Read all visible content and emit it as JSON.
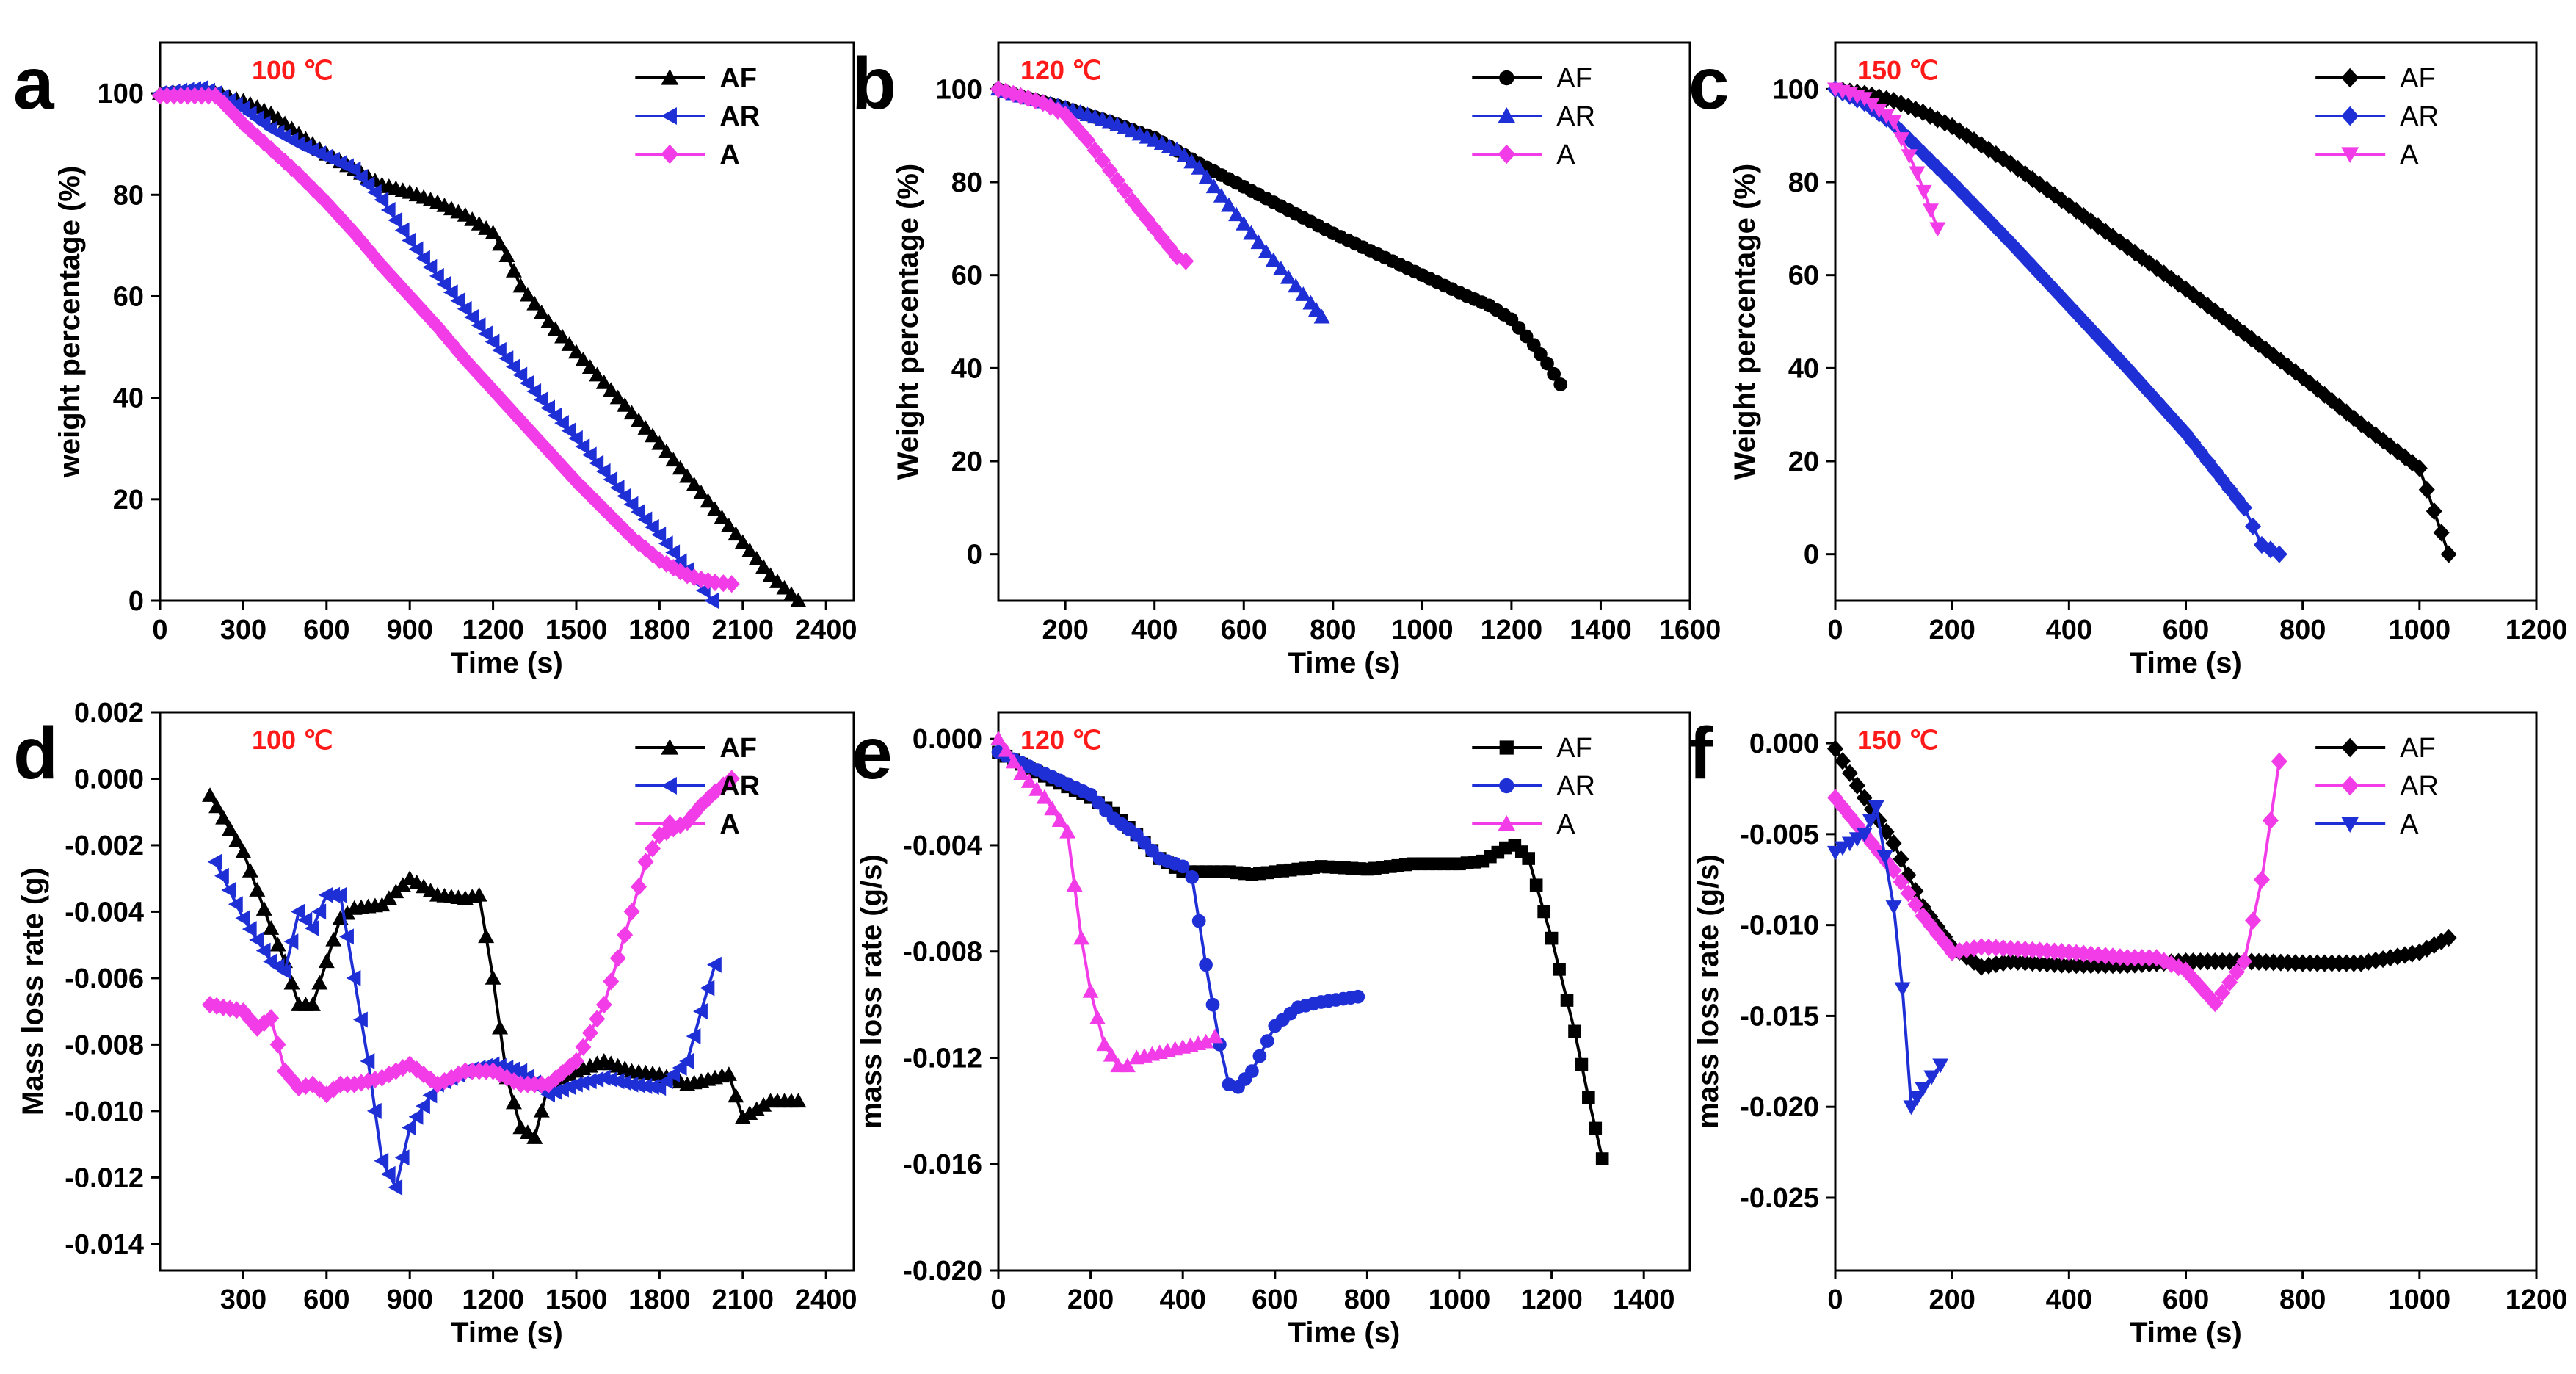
{
  "chart_data": [
    {
      "panel_label": "a",
      "type": "line",
      "temperature": "100 ℃",
      "xlabel": "Time (s)",
      "ylabel": "weight percentage (%)",
      "xlim": [
        0,
        2500
      ],
      "ylim": [
        0,
        110
      ],
      "xticks": [
        0,
        300,
        600,
        900,
        1200,
        1500,
        1800,
        2100,
        2400
      ],
      "yticks": [
        0,
        20,
        40,
        60,
        80,
        100
      ],
      "series": [
        {
          "name": "AF",
          "color": "#000000",
          "marker": "triangle-up",
          "x": [
            0,
            200,
            300,
            400,
            500,
            600,
            700,
            800,
            900,
            1000,
            1100,
            1200,
            1250,
            1300,
            1400,
            1500,
            1600,
            1700,
            1800,
            1900,
            2000,
            2100,
            2200,
            2300
          ],
          "y": [
            100,
            100,
            98.5,
            96,
            92,
            88,
            85,
            82,
            80.5,
            78.5,
            76,
            72.5,
            68,
            62,
            55,
            49,
            43,
            37,
            31,
            24.5,
            18,
            11.5,
            5,
            0
          ]
        },
        {
          "name": "AR",
          "color": "#1f2fd6",
          "marker": "triangle-left",
          "x": [
            0,
            150,
            200,
            300,
            400,
            500,
            600,
            700,
            800,
            900,
            1000,
            1100,
            1200,
            1300,
            1400,
            1500,
            1600,
            1700,
            1800,
            1900,
            1990
          ],
          "y": [
            100,
            101,
            100,
            97,
            93,
            90,
            87.5,
            85,
            79,
            71,
            64,
            57.5,
            51,
            44.5,
            38,
            32,
            25.5,
            19,
            13,
            6,
            0
          ]
        },
        {
          "name": "A",
          "color": "#f23ce8",
          "marker": "diamond",
          "x": [
            0,
            100,
            200,
            230,
            300,
            400,
            500,
            600,
            700,
            800,
            900,
            1000,
            1100,
            1200,
            1300,
            1400,
            1500,
            1600,
            1700,
            1800,
            1900,
            1950,
            2000,
            2060
          ],
          "y": [
            99.5,
            99.5,
            99.5,
            98,
            94,
            89,
            84,
            78.5,
            72.5,
            66,
            60,
            54,
            47.5,
            41.5,
            35.5,
            29.5,
            23.5,
            18,
            12.5,
            8,
            5,
            4.2,
            3.6,
            3.3
          ]
        }
      ]
    },
    {
      "panel_label": "b",
      "type": "line",
      "temperature": "120 ℃",
      "xlabel": "Time (s)",
      "ylabel": "Weight percentage (%)",
      "xlim": [
        50,
        1600
      ],
      "ylim": [
        -10,
        110
      ],
      "xticks": [
        200,
        400,
        600,
        800,
        1000,
        1200,
        1400,
        1600
      ],
      "yticks": [
        0,
        20,
        40,
        60,
        80,
        100
      ],
      "series": [
        {
          "name": "AF",
          "color": "#000000",
          "marker": "circle",
          "x": [
            50,
            100,
            200,
            300,
            400,
            500,
            600,
            700,
            800,
            900,
            1000,
            1100,
            1150,
            1200,
            1250,
            1280,
            1310
          ],
          "y": [
            100,
            98.5,
            96,
            93,
            89.5,
            84,
            79,
            74,
            69,
            64.5,
            60,
            55.5,
            53.5,
            50.5,
            45,
            41,
            36.5
          ]
        },
        {
          "name": "AR",
          "color": "#1f2fd6",
          "marker": "triangle-up",
          "x": [
            50,
            100,
            200,
            300,
            400,
            450,
            500,
            550,
            600,
            650,
            700,
            750,
            775
          ],
          "y": [
            100,
            98.5,
            96,
            93,
            89,
            87,
            83,
            77,
            71,
            65,
            59.5,
            54,
            51
          ]
        },
        {
          "name": "A",
          "color": "#f23ce8",
          "marker": "diamond",
          "x": [
            50,
            100,
            150,
            200,
            250,
            300,
            350,
            400,
            450,
            470
          ],
          "y": [
            100,
            98.5,
            97,
            94.5,
            89,
            82.5,
            76,
            70,
            64,
            63
          ]
        }
      ]
    },
    {
      "panel_label": "c",
      "type": "line",
      "temperature": "150 ℃",
      "xlabel": "Time (s)",
      "ylabel": "Weight percentage (%)",
      "xlim": [
        0,
        1200
      ],
      "ylim": [
        -10,
        110
      ],
      "xticks": [
        0,
        200,
        400,
        600,
        800,
        1000,
        1200
      ],
      "yticks": [
        0,
        20,
        40,
        60,
        80,
        100
      ],
      "series": [
        {
          "name": "AF",
          "color": "#000000",
          "marker": "diamond",
          "x": [
            0,
            50,
            100,
            150,
            200,
            300,
            400,
            500,
            600,
            700,
            800,
            900,
            1000,
            1050
          ],
          "y": [
            100,
            99,
            97.5,
            95,
            92,
            84,
            75,
            66,
            57,
            47.5,
            38,
            28,
            18.5,
            0
          ]
        },
        {
          "name": "AR",
          "color": "#1f2fd6",
          "marker": "diamond",
          "x": [
            0,
            50,
            100,
            200,
            300,
            400,
            500,
            600,
            700,
            730,
            760
          ],
          "y": [
            100,
            97,
            92.5,
            80,
            67,
            53.5,
            40,
            26,
            10,
            2,
            0
          ]
        },
        {
          "name": "A",
          "color": "#f23ce8",
          "marker": "triangle-down",
          "x": [
            0,
            50,
            100,
            140,
            175
          ],
          "y": [
            100,
            98,
            93,
            82,
            70
          ]
        }
      ]
    },
    {
      "panel_label": "d",
      "type": "line",
      "temperature": "100 ℃",
      "xlabel": "Time (s)",
      "ylabel": "Mass loss rate (g)",
      "xlim": [
        0,
        2500
      ],
      "ylim": [
        -0.0148,
        0.002
      ],
      "xticks": [
        300,
        600,
        900,
        1200,
        1500,
        1800,
        2100,
        2400
      ],
      "yticks": [
        -0.014,
        -0.012,
        -0.01,
        -0.008,
        -0.006,
        -0.004,
        -0.002,
        0.0,
        0.002
      ],
      "ytick_labels": [
        "-0.014",
        "-0.012",
        "-0.010",
        "-0.008",
        "-0.006",
        "-0.004",
        "-0.002",
        "0.000",
        "0.002"
      ],
      "series": [
        {
          "name": "AF",
          "color": "#000000",
          "marker": "triangle-up",
          "x": [
            180,
            300,
            400,
            450,
            500,
            550,
            600,
            650,
            700,
            800,
            900,
            1000,
            1100,
            1150,
            1200,
            1250,
            1300,
            1350,
            1400,
            1500,
            1600,
            1700,
            1800,
            1900,
            2000,
            2050,
            2100,
            2200,
            2300
          ],
          "y": [
            -0.0005,
            -0.0022,
            -0.0045,
            -0.0055,
            -0.0068,
            -0.0068,
            -0.0055,
            -0.0042,
            -0.0039,
            -0.0038,
            -0.003,
            -0.0035,
            -0.0036,
            -0.0035,
            -0.006,
            -0.009,
            -0.0105,
            -0.0108,
            -0.0092,
            -0.0088,
            -0.0085,
            -0.0088,
            -0.0089,
            -0.0092,
            -0.009,
            -0.0089,
            -0.0102,
            -0.0097,
            -0.0097
          ]
        },
        {
          "name": "AR",
          "color": "#1f2fd6",
          "marker": "triangle-left",
          "x": [
            200,
            300,
            400,
            450,
            500,
            550,
            600,
            650,
            700,
            750,
            800,
            850,
            900,
            1000,
            1100,
            1200,
            1300,
            1400,
            1500,
            1600,
            1700,
            1800,
            1900,
            1950,
            2000
          ],
          "y": [
            -0.0025,
            -0.0042,
            -0.0055,
            -0.0058,
            -0.004,
            -0.0045,
            -0.0035,
            -0.0035,
            -0.006,
            -0.0085,
            -0.0115,
            -0.0123,
            -0.0105,
            -0.0092,
            -0.0088,
            -0.0086,
            -0.0088,
            -0.0095,
            -0.0092,
            -0.009,
            -0.0092,
            -0.0093,
            -0.0085,
            -0.007,
            -0.0056
          ]
        },
        {
          "name": "A",
          "color": "#f23ce8",
          "marker": "diamond",
          "x": [
            180,
            300,
            350,
            400,
            450,
            500,
            550,
            600,
            650,
            700,
            800,
            900,
            1000,
            1100,
            1200,
            1300,
            1400,
            1500,
            1600,
            1700,
            1750,
            1800,
            1850,
            1900,
            1950,
            2000,
            2060
          ],
          "y": [
            -0.0068,
            -0.007,
            -0.0075,
            -0.0072,
            -0.0088,
            -0.0093,
            -0.0092,
            -0.0095,
            -0.0092,
            -0.0092,
            -0.009,
            -0.0086,
            -0.0092,
            -0.0088,
            -0.0088,
            -0.0092,
            -0.0092,
            -0.0085,
            -0.0068,
            -0.004,
            -0.0025,
            -0.0017,
            -0.0015,
            -0.0013,
            -0.0008,
            -0.0004,
            0.0
          ]
        }
      ]
    },
    {
      "panel_label": "e",
      "type": "line",
      "temperature": "120 ℃",
      "xlabel": "Time (s)",
      "ylabel": "mass loss rate (g/s)",
      "xlim": [
        0,
        1500
      ],
      "ylim": [
        -0.02,
        0.001
      ],
      "xticks": [
        0,
        200,
        400,
        600,
        800,
        1000,
        1200,
        1400
      ],
      "yticks": [
        -0.02,
        -0.016,
        -0.012,
        -0.008,
        -0.004,
        0.0
      ],
      "ytick_labels": [
        "-0.020",
        "-0.016",
        "-0.012",
        "-0.008",
        "-0.004",
        "0.000"
      ],
      "series": [
        {
          "name": "AF",
          "color": "#000000",
          "marker": "square",
          "x": [
            0,
            100,
            200,
            250,
            300,
            350,
            400,
            450,
            500,
            550,
            600,
            700,
            800,
            900,
            1000,
            1050,
            1100,
            1120,
            1150,
            1200,
            1250,
            1280,
            1310
          ],
          "y": [
            -0.0005,
            -0.0014,
            -0.0022,
            -0.0028,
            -0.0036,
            -0.0045,
            -0.005,
            -0.005,
            -0.005,
            -0.0051,
            -0.005,
            -0.0048,
            -0.0049,
            -0.0047,
            -0.0047,
            -0.0046,
            -0.0041,
            -0.004,
            -0.0045,
            -0.0075,
            -0.011,
            -0.0135,
            -0.0158
          ]
        },
        {
          "name": "AR",
          "color": "#1f2fd6",
          "marker": "circle",
          "x": [
            0,
            100,
            200,
            250,
            300,
            350,
            400,
            420,
            450,
            480,
            500,
            520,
            550,
            600,
            650,
            700,
            780
          ],
          "y": [
            -0.0005,
            -0.0013,
            -0.0021,
            -0.003,
            -0.0036,
            -0.0045,
            -0.0048,
            -0.0052,
            -0.0085,
            -0.0115,
            -0.013,
            -0.0131,
            -0.0125,
            -0.0108,
            -0.0101,
            -0.0099,
            -0.0097
          ]
        },
        {
          "name": "A",
          "color": "#f23ce8",
          "marker": "triangle-up",
          "x": [
            0,
            50,
            100,
            150,
            180,
            200,
            230,
            260,
            280,
            300,
            350,
            400,
            450,
            470
          ],
          "y": [
            0.0,
            -0.0013,
            -0.0022,
            -0.0035,
            -0.0075,
            -0.0095,
            -0.0115,
            -0.0123,
            -0.0123,
            -0.012,
            -0.0118,
            -0.0116,
            -0.0114,
            -0.0112
          ]
        }
      ]
    },
    {
      "panel_label": "f",
      "type": "line",
      "temperature": "150 ℃",
      "xlabel": "Time (s)",
      "ylabel": "mass loss rate (g/s)",
      "xlim": [
        0,
        1200
      ],
      "ylim": [
        -0.029,
        0.0017
      ],
      "xticks": [
        0,
        200,
        400,
        600,
        800,
        1000,
        1200
      ],
      "yticks": [
        -0.025,
        -0.02,
        -0.015,
        -0.01,
        -0.005,
        0.0
      ],
      "ytick_labels": [
        "-0.025",
        "-0.020",
        "-0.015",
        "-0.010",
        "-0.005",
        "0.000"
      ],
      "series": [
        {
          "name": "AF",
          "color": "#000000",
          "marker": "diamond",
          "x": [
            0,
            50,
            100,
            150,
            200,
            250,
            300,
            400,
            500,
            600,
            700,
            800,
            900,
            1000,
            1050
          ],
          "y": [
            -0.0003,
            -0.003,
            -0.0055,
            -0.009,
            -0.0112,
            -0.0123,
            -0.012,
            -0.0122,
            -0.0122,
            -0.012,
            -0.012,
            -0.0121,
            -0.0121,
            -0.0115,
            -0.0107
          ]
        },
        {
          "name": "AR",
          "color": "#f23ce8",
          "marker": "diamond",
          "x": [
            0,
            50,
            100,
            150,
            200,
            250,
            300,
            400,
            500,
            550,
            600,
            650,
            700,
            730,
            760
          ],
          "y": [
            -0.003,
            -0.005,
            -0.007,
            -0.0095,
            -0.0115,
            -0.0112,
            -0.0113,
            -0.0115,
            -0.0118,
            -0.0118,
            -0.0125,
            -0.0143,
            -0.012,
            -0.0075,
            -0.001
          ]
        },
        {
          "name": "A",
          "color": "#1f2fd6",
          "marker": "triangle-down",
          "x": [
            0,
            50,
            70,
            100,
            115,
            130,
            150,
            180
          ],
          "y": [
            -0.006,
            -0.005,
            -0.0035,
            -0.009,
            -0.0135,
            -0.02,
            -0.019,
            -0.0177
          ]
        }
      ]
    }
  ]
}
